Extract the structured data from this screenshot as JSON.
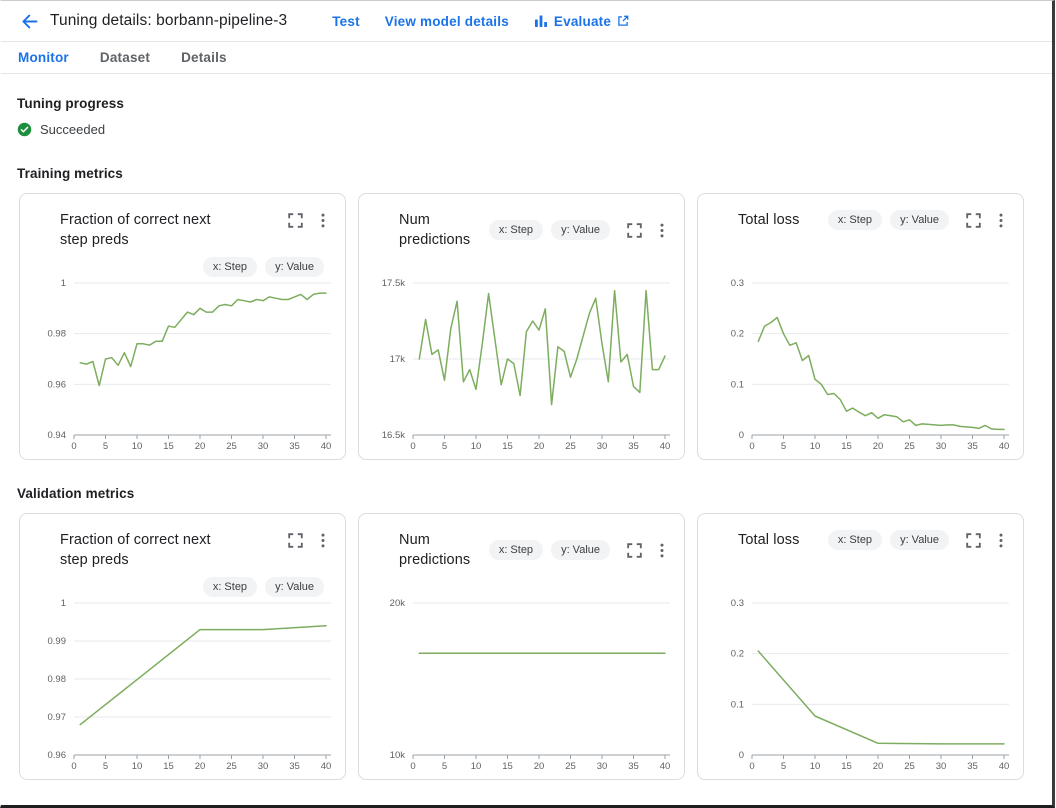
{
  "header": {
    "title": "Tuning details: borbann-pipeline-3",
    "actions": [
      {
        "label": "Test"
      },
      {
        "label": "View model details"
      },
      {
        "label": "Evaluate",
        "leading_icon": "bar-chart-icon",
        "trailing_icon": "external-link-icon"
      }
    ]
  },
  "tabs": [
    {
      "label": "Monitor",
      "active": true
    },
    {
      "label": "Dataset",
      "active": false
    },
    {
      "label": "Details",
      "active": false
    }
  ],
  "sections": {
    "tuning_progress": {
      "heading": "Tuning progress",
      "status": {
        "label": "Succeeded",
        "icon": "check-circle-icon"
      }
    },
    "training": {
      "heading": "Training metrics"
    },
    "validation": {
      "heading": "Validation metrics"
    }
  },
  "colors": {
    "accent": "#1a73e8",
    "line_green": "#7dad5e",
    "success_green": "#1e8e3e",
    "chip_bg": "#f1f3f4",
    "card_border": "#dadce0",
    "gridline": "#e8eaed",
    "axis": "#9aa0a6",
    "tick_text": "#616161",
    "icon_gray": "#5f6368"
  },
  "chart_data": [
    {
      "group": "training",
      "type": "line",
      "title": "Fraction of correct next step preds",
      "title_lines": [
        "Fraction of correct next",
        "step preds"
      ],
      "chips": [
        "x: Step",
        "y: Value"
      ],
      "chips_below_title": true,
      "xlabel": "Step",
      "ylabel": "Value",
      "xlim": [
        0,
        40
      ],
      "xticks": [
        0,
        5,
        10,
        15,
        20,
        25,
        30,
        35,
        40
      ],
      "ylim": [
        0.94,
        1
      ],
      "yticks": [
        0.94,
        0.96,
        0.98,
        1
      ],
      "ytick_labels": [
        "0.94",
        "0.96",
        "0.98",
        "1"
      ],
      "x": [
        1,
        2,
        3,
        4,
        5,
        6,
        7,
        8,
        9,
        10,
        11,
        12,
        13,
        14,
        15,
        16,
        17,
        18,
        19,
        20,
        21,
        22,
        23,
        24,
        25,
        26,
        27,
        28,
        29,
        30,
        31,
        32,
        33,
        34,
        35,
        36,
        37,
        38,
        39,
        40
      ],
      "y": [
        0.9685,
        0.968,
        0.969,
        0.9595,
        0.97,
        0.9705,
        0.9675,
        0.9725,
        0.967,
        0.976,
        0.976,
        0.9755,
        0.977,
        0.977,
        0.983,
        0.9825,
        0.9855,
        0.9885,
        0.9875,
        0.99,
        0.9885,
        0.9885,
        0.991,
        0.9915,
        0.991,
        0.9935,
        0.993,
        0.9925,
        0.9935,
        0.993,
        0.9945,
        0.994,
        0.9935,
        0.9935,
        0.9945,
        0.9955,
        0.9935,
        0.9955,
        0.996,
        0.996
      ]
    },
    {
      "group": "training",
      "type": "line",
      "title": "Num predictions",
      "title_lines": [
        "Num predictions"
      ],
      "chips": [
        "x: Step",
        "y: Value"
      ],
      "chips_below_title": false,
      "xlabel": "Step",
      "ylabel": "Value",
      "xlim": [
        0,
        40
      ],
      "xticks": [
        0,
        5,
        10,
        15,
        20,
        25,
        30,
        35,
        40
      ],
      "ylim": [
        16500,
        17500
      ],
      "yticks": [
        16500,
        17000,
        17500
      ],
      "ytick_labels": [
        "16.5k",
        "17k",
        "17.5k"
      ],
      "x": [
        1,
        2,
        3,
        4,
        5,
        6,
        7,
        8,
        9,
        10,
        11,
        12,
        13,
        14,
        15,
        16,
        17,
        18,
        19,
        20,
        21,
        22,
        23,
        24,
        25,
        26,
        27,
        28,
        29,
        30,
        31,
        32,
        33,
        34,
        35,
        36,
        37,
        38,
        39,
        40
      ],
      "y": [
        17000,
        17260,
        17030,
        17060,
        16860,
        17200,
        17380,
        16850,
        16930,
        16800,
        17100,
        17430,
        17130,
        16830,
        17000,
        16970,
        16760,
        17180,
        17250,
        17190,
        17330,
        16700,
        17080,
        17050,
        16880,
        17000,
        17150,
        17300,
        17400,
        17100,
        16850,
        17450,
        16980,
        17030,
        16820,
        16780,
        17450,
        16930,
        16930,
        17020
      ]
    },
    {
      "group": "training",
      "type": "line",
      "title": "Total loss",
      "title_lines": [
        "Total loss"
      ],
      "chips": [
        "x: Step",
        "y: Value"
      ],
      "chips_below_title": false,
      "xlabel": "Step",
      "ylabel": "Value",
      "xlim": [
        0,
        40
      ],
      "xticks": [
        0,
        5,
        10,
        15,
        20,
        25,
        30,
        35,
        40
      ],
      "ylim": [
        0,
        0.3
      ],
      "yticks": [
        0,
        0.1,
        0.2,
        0.3
      ],
      "ytick_labels": [
        "0",
        "0.1",
        "0.2",
        "0.3"
      ],
      "x": [
        1,
        2,
        3,
        4,
        5,
        6,
        7,
        8,
        9,
        10,
        11,
        12,
        13,
        14,
        15,
        16,
        17,
        18,
        19,
        20,
        21,
        22,
        23,
        24,
        25,
        26,
        27,
        28,
        29,
        30,
        31,
        32,
        33,
        34,
        35,
        36,
        37,
        38,
        39,
        40
      ],
      "y": [
        0.185,
        0.215,
        0.222,
        0.232,
        0.2,
        0.177,
        0.182,
        0.147,
        0.157,
        0.11,
        0.1,
        0.08,
        0.082,
        0.07,
        0.047,
        0.053,
        0.045,
        0.038,
        0.044,
        0.033,
        0.04,
        0.038,
        0.036,
        0.026,
        0.03,
        0.019,
        0.022,
        0.021,
        0.02,
        0.019,
        0.02,
        0.02,
        0.017,
        0.016,
        0.015,
        0.013,
        0.019,
        0.012,
        0.011,
        0.011
      ]
    },
    {
      "group": "validation",
      "type": "line",
      "title": "Fraction of correct next step preds",
      "title_lines": [
        "Fraction of correct next",
        "step preds"
      ],
      "chips": [
        "x: Step",
        "y: Value"
      ],
      "chips_below_title": true,
      "xlabel": "Step",
      "ylabel": "Value",
      "xlim": [
        0,
        40
      ],
      "xticks": [
        0,
        5,
        10,
        15,
        20,
        25,
        30,
        35,
        40
      ],
      "ylim": [
        0.96,
        1
      ],
      "yticks": [
        0.96,
        0.97,
        0.98,
        0.99,
        1
      ],
      "ytick_labels": [
        "0.96",
        "0.97",
        "0.98",
        "0.99",
        "1"
      ],
      "x": [
        1,
        20,
        30,
        40
      ],
      "y": [
        0.968,
        0.993,
        0.993,
        0.994
      ]
    },
    {
      "group": "validation",
      "type": "line",
      "title": "Num predictions",
      "title_lines": [
        "Num predictions"
      ],
      "chips": [
        "x: Step",
        "y: Value"
      ],
      "chips_below_title": false,
      "xlabel": "Step",
      "ylabel": "Value",
      "xlim": [
        0,
        40
      ],
      "xticks": [
        0,
        5,
        10,
        15,
        20,
        25,
        30,
        35,
        40
      ],
      "ylim": [
        10000,
        20000
      ],
      "yticks": [
        10000,
        20000
      ],
      "ytick_labels": [
        "10k",
        "20k"
      ],
      "x": [
        1,
        40
      ],
      "y": [
        16700,
        16700
      ]
    },
    {
      "group": "validation",
      "type": "line",
      "title": "Total loss",
      "title_lines": [
        "Total loss"
      ],
      "chips": [
        "x: Step",
        "y: Value"
      ],
      "chips_below_title": false,
      "xlabel": "Step",
      "ylabel": "Value",
      "xlim": [
        0,
        40
      ],
      "xticks": [
        0,
        5,
        10,
        15,
        20,
        25,
        30,
        35,
        40
      ],
      "ylim": [
        0,
        0.3
      ],
      "yticks": [
        0,
        0.1,
        0.2,
        0.3
      ],
      "ytick_labels": [
        "0",
        "0.1",
        "0.2",
        "0.3"
      ],
      "x": [
        1,
        10,
        20,
        30,
        40
      ],
      "y": [
        0.205,
        0.077,
        0.023,
        0.022,
        0.022
      ]
    }
  ]
}
